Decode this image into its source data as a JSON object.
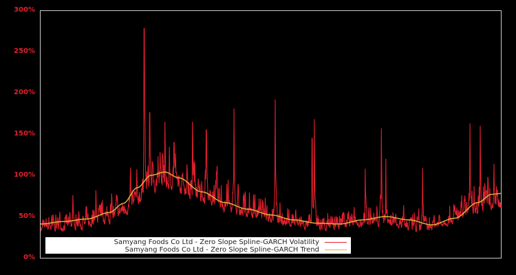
{
  "chart_data": {
    "type": "line",
    "title": "",
    "xlabel": "",
    "ylabel": "",
    "ylim": [
      0,
      300
    ],
    "y_ticks": [
      "0%",
      "50%",
      "100%",
      "150%",
      "200%",
      "250%",
      "300%"
    ],
    "y_tick_values": [
      0,
      50,
      100,
      150,
      200,
      250,
      300
    ],
    "grid": false,
    "legend_position": "lower-left",
    "series": [
      {
        "name": "Samyang Foods Co Ltd - Zero Slope Spline-GARCH Volatility",
        "color": "#e0202e",
        "base_x": [
          0,
          0.08,
          0.14,
          0.2,
          0.24,
          0.28,
          0.35,
          0.45,
          0.55,
          0.62,
          0.68,
          0.75,
          0.82,
          0.88,
          0.94,
          1.0
        ],
        "base_y": [
          30,
          32,
          38,
          48,
          72,
          75,
          62,
          45,
          35,
          32,
          38,
          36,
          28,
          40,
          48,
          52
        ],
        "spikes": [
          {
            "x": 0.225,
            "y": 278
          },
          {
            "x": 0.237,
            "y": 176
          },
          {
            "x": 0.27,
            "y": 165
          },
          {
            "x": 0.33,
            "y": 165
          },
          {
            "x": 0.36,
            "y": 155
          },
          {
            "x": 0.42,
            "y": 181
          },
          {
            "x": 0.51,
            "y": 192
          },
          {
            "x": 0.595,
            "y": 168
          },
          {
            "x": 0.59,
            "y": 145
          },
          {
            "x": 0.705,
            "y": 108
          },
          {
            "x": 0.74,
            "y": 157
          },
          {
            "x": 0.75,
            "y": 120
          },
          {
            "x": 0.83,
            "y": 109
          },
          {
            "x": 0.933,
            "y": 163
          },
          {
            "x": 0.955,
            "y": 160
          },
          {
            "x": 0.985,
            "y": 114
          },
          {
            "x": 0.29,
            "y": 140
          },
          {
            "x": 0.12,
            "y": 82
          },
          {
            "x": 0.07,
            "y": 76
          }
        ]
      },
      {
        "name": "Samyang Foods Co Ltd - Zero Slope Spline-GARCH Trend",
        "color": "#d9b33a",
        "x": [
          0,
          0.05,
          0.1,
          0.15,
          0.18,
          0.21,
          0.24,
          0.27,
          0.3,
          0.35,
          0.4,
          0.45,
          0.5,
          0.55,
          0.6,
          0.65,
          0.7,
          0.75,
          0.8,
          0.85,
          0.9,
          0.95,
          0.98,
          1.0
        ],
        "y": [
          41,
          44,
          47,
          55,
          66,
          85,
          100,
          104,
          97,
          80,
          67,
          59,
          52,
          46,
          42,
          41,
          46,
          50,
          46,
          40,
          48,
          67,
          77,
          78
        ]
      }
    ]
  },
  "legend": {
    "volatility_label": "Samyang Foods Co Ltd - Zero Slope Spline-GARCH Volatility",
    "trend_label": "Samyang Foods Co Ltd - Zero Slope Spline-GARCH Trend"
  }
}
